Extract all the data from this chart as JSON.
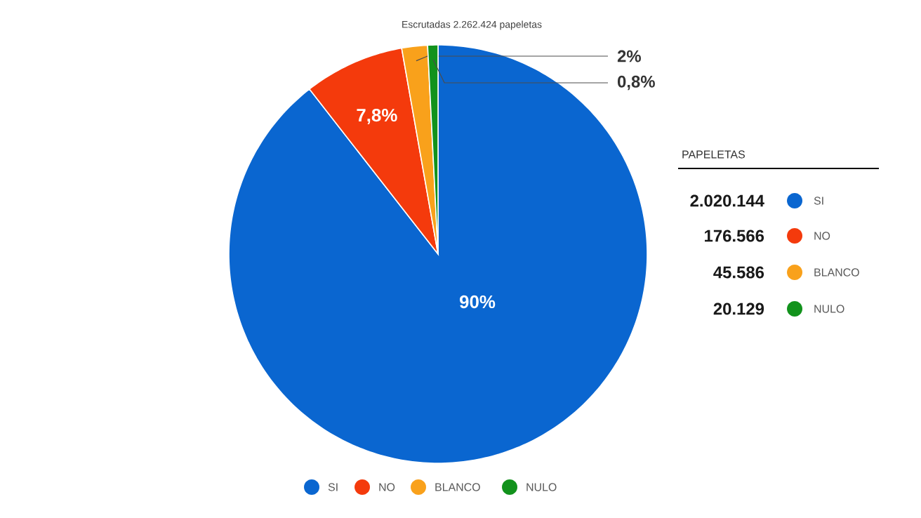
{
  "chart_data": {
    "type": "pie",
    "title": "Escrutadas 2.262.424 papeletas",
    "categories": [
      "SI",
      "NO",
      "BLANCO",
      "NULO"
    ],
    "values": [
      90,
      7.8,
      2,
      0.8
    ],
    "value_labels": [
      "90%",
      "7,8%",
      "2%",
      "0,8%"
    ],
    "annotations": [
      "2.020.144",
      "176.566",
      "45.586",
      "20.129"
    ],
    "colors": [
      "#0a66d0",
      "#f43a0c",
      "#f9a11b",
      "#12921c"
    ],
    "legend_title": "PAPELETAS",
    "legend": "bottom"
  }
}
